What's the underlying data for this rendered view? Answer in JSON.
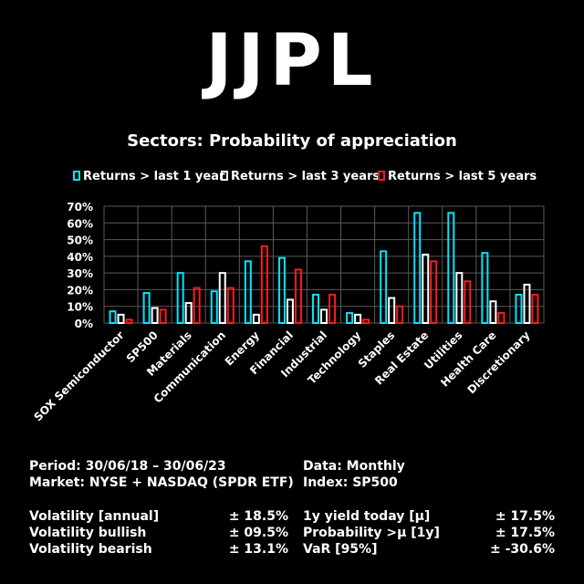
{
  "logo": "JJPL",
  "chart_data": {
    "type": "bar",
    "title": "Sectors: Probability of appreciation",
    "categories": [
      "SOX Semiconductor",
      "SP500",
      "Materials",
      "Communication",
      "Energy",
      "Financial",
      "Industrial",
      "Technology",
      "Staples",
      "Real Estate",
      "Utilities",
      "Health Care",
      "Discretionary"
    ],
    "y_ticks": [
      "0%",
      "10%",
      "20%",
      "30%",
      "40%",
      "50%",
      "60%",
      "70%"
    ],
    "ylim": [
      0,
      70
    ],
    "grid": true,
    "legend_position": "top",
    "series": [
      {
        "name": "Returns > last 1 year",
        "color": "#00e5ff",
        "values": [
          7,
          18,
          30,
          19,
          37,
          39,
          17,
          6,
          43,
          66,
          66,
          42,
          17
        ]
      },
      {
        "name": "Returns > last 3 years",
        "color": "#ffffff",
        "values": [
          5,
          9,
          12,
          30,
          5,
          14,
          8,
          5,
          15,
          41,
          30,
          13,
          23
        ]
      },
      {
        "name": "Returns > last 5 years",
        "color": "#ff1a1a",
        "values": [
          2,
          8,
          21,
          21,
          46,
          32,
          17,
          2,
          10,
          37,
          25,
          6,
          17
        ]
      }
    ]
  },
  "info": {
    "period": "Period: 30/06/18 – 30/06/23",
    "market": "Market: NYSE + NASDAQ (SPDR ETF)",
    "data": "Data: Monthly",
    "index": "Index: SP500"
  },
  "stats_left": [
    {
      "label": "Volatility [annual]",
      "value": "± 18.5%"
    },
    {
      "label": "Volatility bullish",
      "value": "± 09.5%"
    },
    {
      "label": "Volatility bearish",
      "value": "± 13.1%"
    }
  ],
  "stats_right": [
    {
      "label": "1y yield today [µ]",
      "value": "± 17.5%"
    },
    {
      "label": "Probability >µ [1y]",
      "value": "± 17.5%"
    },
    {
      "label": "VaR [95%]",
      "value": "± -30.6%"
    }
  ]
}
